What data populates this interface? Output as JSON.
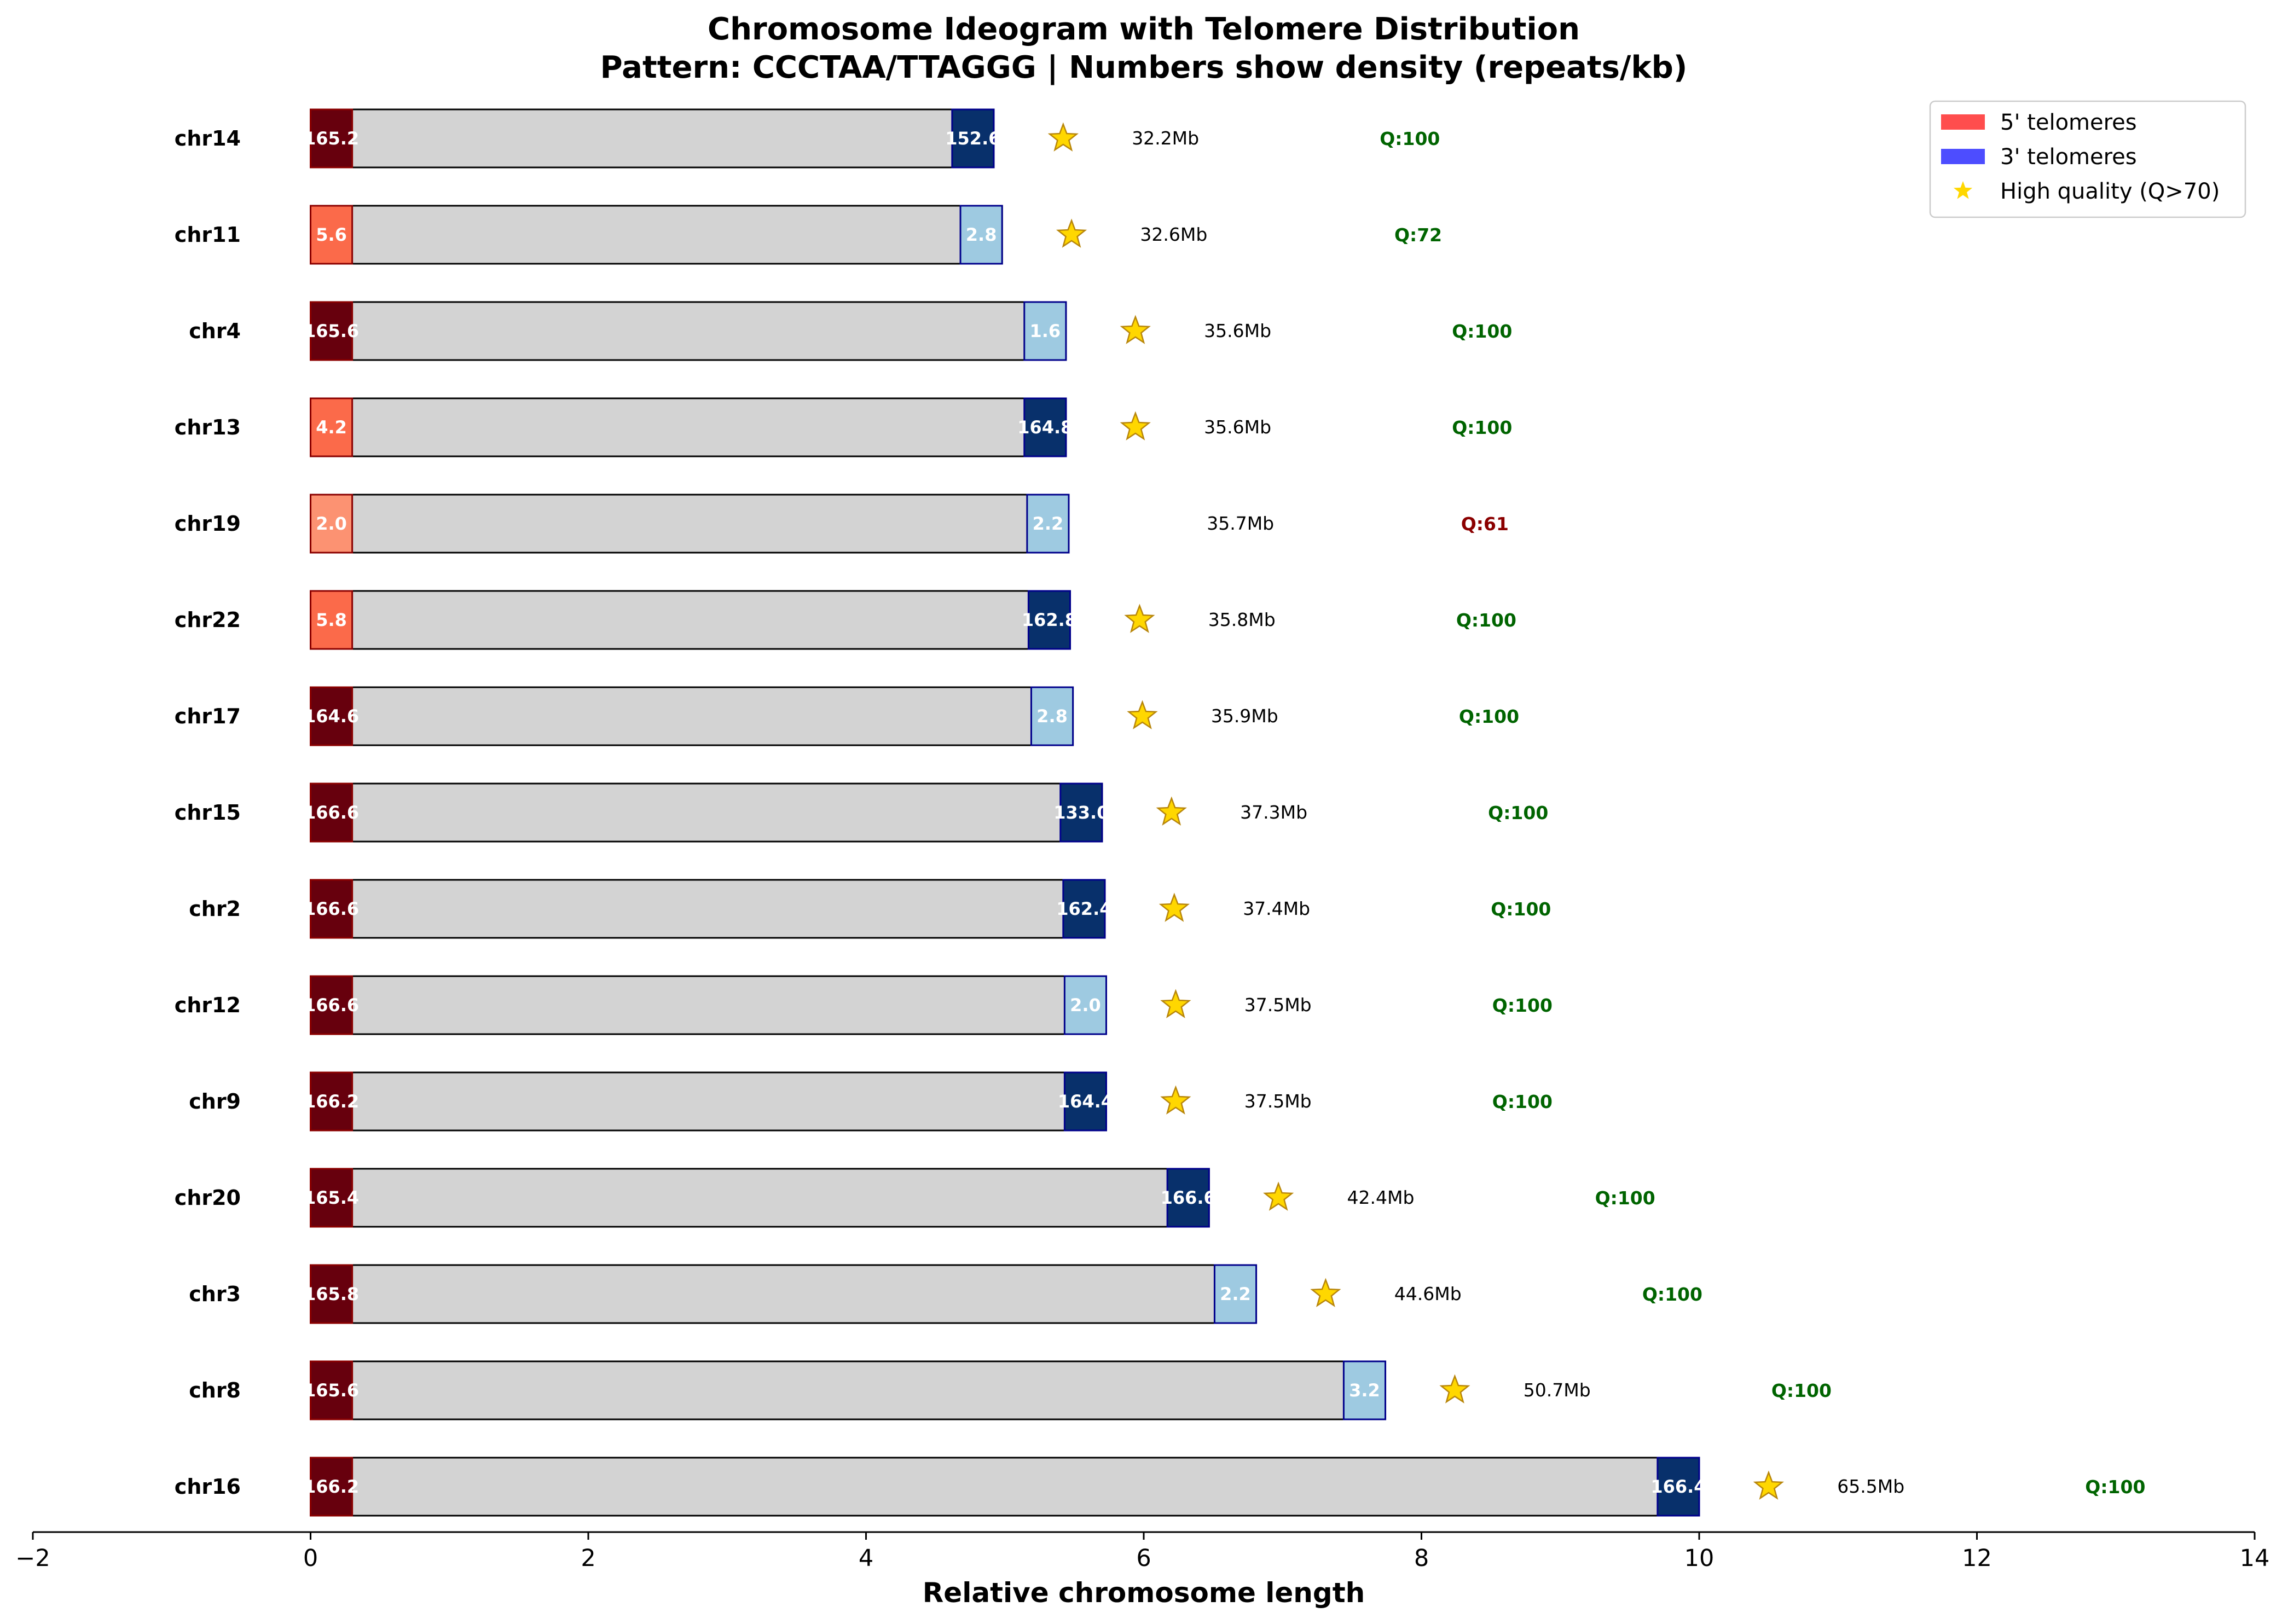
{
  "chart_data": {
    "type": "bar",
    "title": "Chromosome Ideogram with Telomere Distribution",
    "subtitle": "Pattern: CCCTAA/TTAGGG | Numbers show density (repeats/kb)",
    "xlabel": "Relative chromosome length",
    "xlim": [
      -2,
      14
    ],
    "xticks": [
      "−2",
      "0",
      "2",
      "4",
      "6",
      "8",
      "10",
      "12",
      "14"
    ],
    "xtick_values": [
      -2,
      0,
      2,
      4,
      6,
      8,
      10,
      12,
      14
    ],
    "telomere_width": 0.3,
    "grid": false,
    "legend_position": "top-right",
    "legend": [
      {
        "label": "5' telomeres",
        "color": "#ff4d4d",
        "kind": "patch"
      },
      {
        "label": "3' telomeres",
        "color": "#4d4dff",
        "kind": "patch"
      },
      {
        "label": "High quality (Q>70)",
        "color": "#ffd700",
        "kind": "star"
      }
    ],
    "colors": {
      "body": "#d3d3d3",
      "five_prime_high": "#67000d",
      "five_prime_mid": "#fb6a4a",
      "five_prime_low": "#fc9272",
      "three_prime_high": "#08306b",
      "three_prime_low": "#9ecae1",
      "q_high": "#006400",
      "q_low": "#8b0000",
      "star": "#ffd700"
    },
    "rows": [
      {
        "chrom": "chr14",
        "length": 4.92,
        "five": "165.2",
        "five_level": "high",
        "three": "152.6",
        "three_level": "high",
        "size": "32.2Mb",
        "quality": "Q:100",
        "high_quality": true
      },
      {
        "chrom": "chr11",
        "length": 4.98,
        "five": "5.6",
        "five_level": "mid",
        "three": "2.8",
        "three_level": "low",
        "size": "32.6Mb",
        "quality": "Q:72",
        "high_quality": true
      },
      {
        "chrom": "chr4",
        "length": 5.44,
        "five": "165.6",
        "five_level": "high",
        "three": "1.6",
        "three_level": "low",
        "size": "35.6Mb",
        "quality": "Q:100",
        "high_quality": true
      },
      {
        "chrom": "chr13",
        "length": 5.44,
        "five": "4.2",
        "five_level": "mid",
        "three": "164.8",
        "three_level": "high",
        "size": "35.6Mb",
        "quality": "Q:100",
        "high_quality": true
      },
      {
        "chrom": "chr19",
        "length": 5.46,
        "five": "2.0",
        "five_level": "low",
        "three": "2.2",
        "three_level": "low",
        "size": "35.7Mb",
        "quality": "Q:61",
        "high_quality": false
      },
      {
        "chrom": "chr22",
        "length": 5.47,
        "five": "5.8",
        "five_level": "mid",
        "three": "162.8",
        "three_level": "high",
        "size": "35.8Mb",
        "quality": "Q:100",
        "high_quality": true
      },
      {
        "chrom": "chr17",
        "length": 5.49,
        "five": "164.6",
        "five_level": "high",
        "three": "2.8",
        "three_level": "low",
        "size": "35.9Mb",
        "quality": "Q:100",
        "high_quality": true
      },
      {
        "chrom": "chr15",
        "length": 5.7,
        "five": "166.6",
        "five_level": "high",
        "three": "133.0",
        "three_level": "high",
        "size": "37.3Mb",
        "quality": "Q:100",
        "high_quality": true
      },
      {
        "chrom": "chr2",
        "length": 5.72,
        "five": "166.6",
        "five_level": "high",
        "three": "162.4",
        "three_level": "high",
        "size": "37.4Mb",
        "quality": "Q:100",
        "high_quality": true
      },
      {
        "chrom": "chr12",
        "length": 5.73,
        "five": "166.6",
        "five_level": "high",
        "three": "2.0",
        "three_level": "low",
        "size": "37.5Mb",
        "quality": "Q:100",
        "high_quality": true
      },
      {
        "chrom": "chr9",
        "length": 5.73,
        "five": "166.2",
        "five_level": "high",
        "three": "164.4",
        "three_level": "high",
        "size": "37.5Mb",
        "quality": "Q:100",
        "high_quality": true
      },
      {
        "chrom": "chr20",
        "length": 6.47,
        "five": "165.4",
        "five_level": "high",
        "three": "166.6",
        "three_level": "high",
        "size": "42.4Mb",
        "quality": "Q:100",
        "high_quality": true
      },
      {
        "chrom": "chr3",
        "length": 6.81,
        "five": "165.8",
        "five_level": "high",
        "three": "2.2",
        "three_level": "low",
        "size": "44.6Mb",
        "quality": "Q:100",
        "high_quality": true
      },
      {
        "chrom": "chr8",
        "length": 7.74,
        "five": "165.6",
        "five_level": "high",
        "three": "3.2",
        "three_level": "low",
        "size": "50.7Mb",
        "quality": "Q:100",
        "high_quality": true
      },
      {
        "chrom": "chr16",
        "length": 10.0,
        "five": "166.2",
        "five_level": "high",
        "three": "166.4",
        "three_level": "high",
        "size": "65.5Mb",
        "quality": "Q:100",
        "high_quality": true
      }
    ]
  }
}
